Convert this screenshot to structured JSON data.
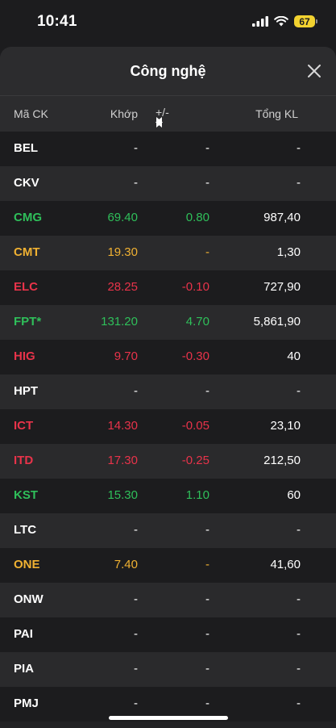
{
  "status": {
    "time": "10:41",
    "battery": "67"
  },
  "sheet": {
    "title": "Công nghệ"
  },
  "columns": {
    "code": "Mã CK",
    "match": "Khớp",
    "change": "+/-",
    "volume": "Tổng KL"
  },
  "colors": {
    "up": "#2fbf5a",
    "reference": "#f0b132",
    "down": "#e8334a",
    "neutral": "#ffffff"
  },
  "rows": [
    {
      "code": "BEL",
      "match": "-",
      "change": "-",
      "volume": "-",
      "color": "white"
    },
    {
      "code": "CKV",
      "match": "-",
      "change": "-",
      "volume": "-",
      "color": "white"
    },
    {
      "code": "CMG",
      "match": "69.40",
      "change": "0.80",
      "volume": "987,40",
      "color": "green"
    },
    {
      "code": "CMT",
      "match": "19.30",
      "change": "-",
      "volume": "1,30",
      "color": "yellow"
    },
    {
      "code": "ELC",
      "match": "28.25",
      "change": "-0.10",
      "volume": "727,90",
      "color": "red"
    },
    {
      "code": "FPT*",
      "match": "131.20",
      "change": "4.70",
      "volume": "5,861,90",
      "color": "green"
    },
    {
      "code": "HIG",
      "match": "9.70",
      "change": "-0.30",
      "volume": "40",
      "color": "red"
    },
    {
      "code": "HPT",
      "match": "-",
      "change": "-",
      "volume": "-",
      "color": "white"
    },
    {
      "code": "ICT",
      "match": "14.30",
      "change": "-0.05",
      "volume": "23,10",
      "color": "red"
    },
    {
      "code": "ITD",
      "match": "17.30",
      "change": "-0.25",
      "volume": "212,50",
      "color": "red"
    },
    {
      "code": "KST",
      "match": "15.30",
      "change": "1.10",
      "volume": "60",
      "color": "green"
    },
    {
      "code": "LTC",
      "match": "-",
      "change": "-",
      "volume": "-",
      "color": "white"
    },
    {
      "code": "ONE",
      "match": "7.40",
      "change": "-",
      "volume": "41,60",
      "color": "yellow"
    },
    {
      "code": "ONW",
      "match": "-",
      "change": "-",
      "volume": "-",
      "color": "white"
    },
    {
      "code": "PAI",
      "match": "-",
      "change": "-",
      "volume": "-",
      "color": "white"
    },
    {
      "code": "PIA",
      "match": "-",
      "change": "-",
      "volume": "-",
      "color": "white"
    },
    {
      "code": "PMJ",
      "match": "-",
      "change": "-",
      "volume": "-",
      "color": "white"
    }
  ]
}
